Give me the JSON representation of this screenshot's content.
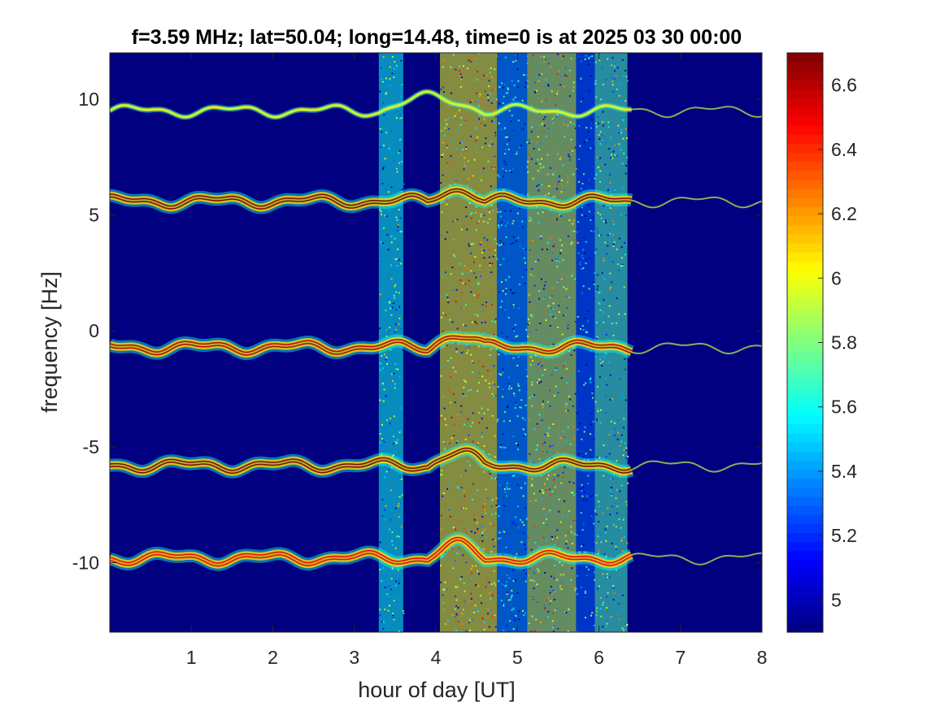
{
  "chart_data": {
    "type": "heatmap",
    "title": "f=3.59 MHz;  lat=50.04; long=14.48, time=0 is at 2025 03 30 00:00",
    "xlabel": "hour of day [UT]",
    "ylabel": "frequency [Hz]",
    "xlim": [
      0,
      8
    ],
    "ylim": [
      -13,
      12
    ],
    "xticks": [
      1,
      2,
      3,
      4,
      5,
      6,
      7,
      8
    ],
    "yticks": [
      10,
      5,
      0,
      -5,
      -10
    ],
    "colorbar": {
      "clim": [
        4.9,
        6.7
      ],
      "ticks": [
        6.6,
        6.4,
        6.2,
        6,
        5.8,
        5.6,
        5.4,
        5.2,
        5
      ],
      "colormap": "jet"
    },
    "background_level": 4.9,
    "series": [
      {
        "base_frequency": 9.5,
        "peak_level": 5.9,
        "drift_hours": [
          3.3,
          4.6
        ]
      },
      {
        "base_frequency": 5.6,
        "peak_level": 6.7,
        "drift_hours": [
          3.9,
          4.6
        ]
      },
      {
        "base_frequency": -0.7,
        "peak_level": 6.6,
        "drift_hours": [
          3.9,
          4.6
        ]
      },
      {
        "base_frequency": -5.8,
        "peak_level": 6.7,
        "drift_hours": [
          3.9,
          4.6
        ]
      },
      {
        "base_frequency": -9.8,
        "peak_level": 6.5,
        "drift_hours": [
          3.9,
          4.6
        ]
      }
    ],
    "broadband_noise_intervals": [
      {
        "hours": [
          3.3,
          3.6
        ],
        "level": 5.6
      },
      {
        "hours": [
          4.05,
          4.75
        ],
        "level": 6.0
      },
      {
        "hours": [
          4.75,
          5.12
        ],
        "level": 5.4
      },
      {
        "hours": [
          5.12,
          5.72
        ],
        "level": 5.9
      },
      {
        "hours": [
          5.72,
          5.95
        ],
        "level": 5.3
      },
      {
        "hours": [
          5.95,
          6.35
        ],
        "level": 5.7
      }
    ]
  }
}
